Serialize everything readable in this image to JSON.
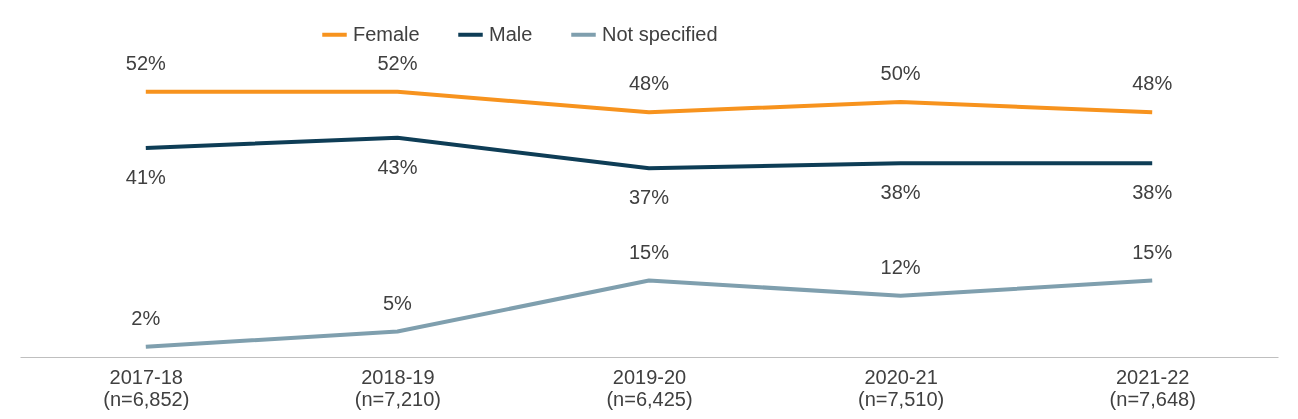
{
  "chart_data": {
    "type": "line",
    "categories": [
      "2017-18\n(n=6,852)",
      "2018-19\n(n=7,210)",
      "2019-20\n(n=6,425)",
      "2020-21\n(n=7,510)",
      "2021-22\n(n=7,648)"
    ],
    "series": [
      {
        "name": "Female",
        "color": "#f7931e",
        "values": [
          52,
          52,
          48,
          50,
          48
        ],
        "value_labels": [
          "52%",
          "52%",
          "48%",
          "50%",
          "48%"
        ]
      },
      {
        "name": "Male",
        "color": "#0e3d56",
        "values": [
          41,
          43,
          37,
          38,
          38
        ],
        "value_labels": [
          "41%",
          "43%",
          "37%",
          "38%",
          "38%"
        ]
      },
      {
        "name": "Not specified",
        "color": "#7f9fae",
        "values": [
          2,
          5,
          15,
          12,
          15
        ],
        "value_labels": [
          "2%",
          "5%",
          "15%",
          "12%",
          "15%"
        ]
      }
    ],
    "legend": "top",
    "grid": false,
    "marker": "none",
    "line_style": "solid"
  }
}
